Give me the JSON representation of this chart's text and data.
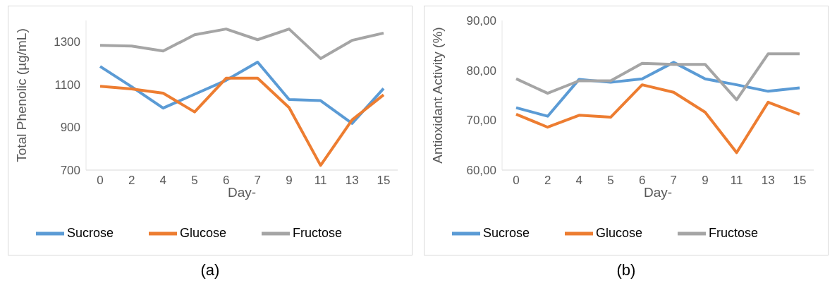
{
  "chart_data": [
    {
      "type": "line",
      "xlabel": "Day-",
      "ylabel": "Total Phenolic (µg/mL)",
      "categories": [
        "0",
        "2",
        "4",
        "5",
        "6",
        "7",
        "9",
        "11",
        "13",
        "15"
      ],
      "series": [
        {
          "name": "Sucrose",
          "color": "#5b9bd5",
          "values": [
            1185,
            1090,
            990,
            1055,
            1120,
            1205,
            1030,
            1025,
            918,
            1082
          ]
        },
        {
          "name": "Glucose",
          "color": "#ed7d31",
          "values": [
            1092,
            1080,
            1060,
            972,
            1130,
            1130,
            992,
            722,
            935,
            1052
          ]
        },
        {
          "name": "Fructose",
          "color": "#a5a5a5",
          "values": [
            1284,
            1280,
            1257,
            1333,
            1360,
            1310,
            1360,
            1222,
            1307,
            1341
          ]
        }
      ],
      "ylim": [
        700,
        1400
      ],
      "yticks": [
        700,
        900,
        1100,
        1300
      ],
      "grid": false,
      "legend": "bottom",
      "marker": "none",
      "line_style": "solid",
      "annotations": [
        "(a)"
      ]
    },
    {
      "type": "line",
      "xlabel": "Day-",
      "ylabel": "Antioxidant Activity (%)",
      "categories": [
        "0",
        "2",
        "4",
        "5",
        "6",
        "7",
        "9",
        "11",
        "13",
        "15"
      ],
      "series": [
        {
          "name": "Sucrose",
          "color": "#5b9bd5",
          "values": [
            72.5,
            70.8,
            78.2,
            77.6,
            78.3,
            81.6,
            78.3,
            77.1,
            75.8,
            76.5
          ]
        },
        {
          "name": "Glucose",
          "color": "#ed7d31",
          "values": [
            71.2,
            68.6,
            71.0,
            70.6,
            77.1,
            75.6,
            71.6,
            63.5,
            73.6,
            71.2
          ]
        },
        {
          "name": "Fructose",
          "color": "#a5a5a5",
          "values": [
            78.3,
            75.4,
            77.9,
            77.9,
            81.4,
            81.2,
            81.2,
            74.1,
            83.3,
            83.3
          ]
        }
      ],
      "ylim": [
        60,
        90
      ],
      "yticks": [
        {
          "value": 60,
          "label": "60,00"
        },
        {
          "value": 70,
          "label": "70,00"
        },
        {
          "value": 80,
          "label": "80,00"
        },
        {
          "value": 90,
          "label": "90,00"
        }
      ],
      "grid": false,
      "legend": "bottom",
      "marker": "none",
      "line_style": "solid",
      "annotations": [
        "(b)"
      ]
    }
  ]
}
